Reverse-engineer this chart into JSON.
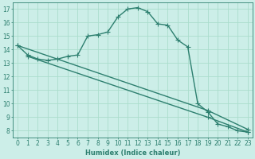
{
  "background_color": "#cceee8",
  "grid_color": "#aaddcc",
  "line_color": "#2d7f6f",
  "xlabel": "Humidex (Indice chaleur)",
  "xlim": [
    -0.5,
    23.5
  ],
  "ylim": [
    7.5,
    17.5
  ],
  "yticks": [
    8,
    9,
    10,
    11,
    12,
    13,
    14,
    15,
    16,
    17
  ],
  "xticks": [
    0,
    1,
    2,
    3,
    4,
    5,
    6,
    7,
    8,
    9,
    10,
    11,
    12,
    13,
    14,
    15,
    16,
    17,
    18,
    19,
    20,
    21,
    22,
    23
  ],
  "line1_x": [
    0,
    1,
    2,
    3,
    4,
    5,
    6,
    7,
    8,
    9,
    10,
    11,
    12,
    13,
    14,
    15,
    16,
    17,
    18,
    19,
    20,
    21,
    22,
    23
  ],
  "line1_y": [
    14.3,
    13.6,
    13.3,
    13.2,
    13.3,
    13.5,
    13.6,
    15.0,
    15.1,
    15.3,
    16.4,
    17.0,
    17.1,
    16.8,
    15.9,
    15.8,
    14.7,
    14.2,
    10.0,
    9.4,
    8.5,
    8.3,
    8.0,
    7.9
  ],
  "line2_x": [
    0,
    19,
    23
  ],
  "line2_y": [
    14.3,
    9.5,
    8.1
  ],
  "line3_x": [
    1,
    19,
    23
  ],
  "line3_y": [
    13.5,
    9.0,
    7.9
  ],
  "marker_size": 2.5,
  "linewidth": 1.0
}
